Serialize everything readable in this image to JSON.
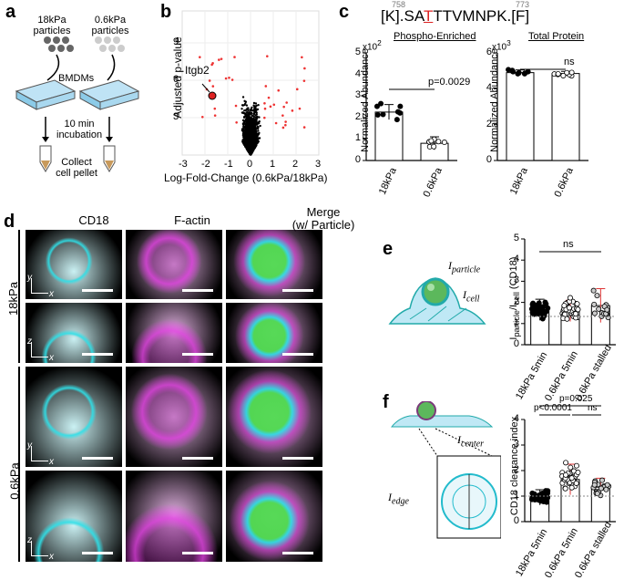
{
  "panels": {
    "a": {
      "label": "a",
      "p18": "18kPa",
      "p18b": "particles",
      "p06": "0.6kPa",
      "p06b": "particles",
      "bmdm": "BMDMs",
      "inc1": "10 min",
      "inc2": "incubation",
      "col1": "Collect",
      "col2": "cell pellet"
    },
    "b": {
      "label": "b",
      "gene": "Itgb2",
      "ylabel": "Adjusted p-value",
      "xlabel": "Log-Fold-Change (0.6kPa/18kPa)",
      "xticks": [
        "-3",
        "-2",
        "-1",
        "0",
        "1",
        "2",
        "3"
      ],
      "yticks": [
        "3",
        "6",
        "9"
      ]
    },
    "c": {
      "label": "c",
      "seq_pre": "[K].SA",
      "seq_t": "T",
      "seq_post": "TTVMNPK.[F]",
      "pos1": "758",
      "pos2": "773",
      "sub1": "Phospho-Enriched",
      "sub2": "Total Protein",
      "exp1": "x10",
      "exp1s": "2",
      "exp2": "x10",
      "exp2s": "3",
      "ylabel": "Normalized Abundance",
      "pval": "p=0.0029",
      "ns": "ns",
      "yt1": [
        "0",
        "1",
        "2",
        "3",
        "4",
        "5"
      ],
      "yt2": [
        "0",
        "2",
        "4",
        "6"
      ],
      "cats": [
        "18kPa",
        "0.6kPa"
      ]
    },
    "d": {
      "label": "d",
      "c1": "CD18",
      "c2": "F-actin",
      "c3": "Merge",
      "c3b": "(w/ Particle)",
      "r1": "18kPa",
      "r2": "0.6kPa",
      "ax_y": "y",
      "ax_x": "x",
      "ax_z": "z"
    },
    "e": {
      "label": "e",
      "ipart": "I",
      "ipart_s": "particle",
      "icell": "I",
      "icell_s": "cell",
      "ylabel": "I",
      "ylabel_s1": "particle",
      "ylabel_m": "/I",
      "ylabel_s2": "cell",
      "ylabel_end": " (CD18)",
      "ns": "ns",
      "yticks": [
        "0",
        "1",
        "2",
        "3",
        "4",
        "5"
      ],
      "cats": [
        "18kPa 5min",
        "0.6kPa 5min",
        "0.6kPa stalled"
      ]
    },
    "f": {
      "label": "f",
      "icenter": "I",
      "icenter_s": "center",
      "iedge": "I",
      "iedge_s": "edge",
      "ylabel": "CD18 clearance index",
      "p1": "p<0.0001",
      "p2": "p=0.025",
      "ns": "ns",
      "yticks": [
        "0",
        "1",
        "2",
        "3",
        "4"
      ],
      "cats": [
        "18kPa 5min",
        "0.6kPa 5min",
        "0.6kPa stalled"
      ]
    }
  },
  "chart_data": [
    {
      "type": "scatter",
      "panel": "b",
      "xlabel": "Log-Fold-Change (0.6kPa/18kPa)",
      "ylabel": "Adjusted p-value",
      "xlim": [
        -3,
        3
      ],
      "ylim": [
        0,
        11
      ]
    },
    {
      "type": "bar",
      "panel": "c-left",
      "title": "Phospho-Enriched",
      "categories": [
        "18kPa",
        "0.6kPa"
      ],
      "values": [
        2.25,
        0.8
      ],
      "ylim": [
        0,
        5
      ]
    },
    {
      "type": "bar",
      "panel": "c-right",
      "title": "Total Protein",
      "categories": [
        "18kPa",
        "0.6kPa"
      ],
      "values": [
        4.9,
        4.85
      ],
      "ylim": [
        0,
        6
      ]
    },
    {
      "type": "bar",
      "panel": "e",
      "categories": [
        "18kPa 5min",
        "0.6kPa 5min",
        "0.6kPa stalled"
      ],
      "values": [
        1.65,
        1.6,
        1.85
      ],
      "ylim": [
        0,
        5
      ]
    },
    {
      "type": "bar",
      "panel": "f",
      "categories": [
        "18kPa 5min",
        "0.6kPa 5min",
        "0.6kPa stalled"
      ],
      "values": [
        0.95,
        1.65,
        1.35
      ],
      "ylim": [
        0,
        4
      ]
    }
  ]
}
